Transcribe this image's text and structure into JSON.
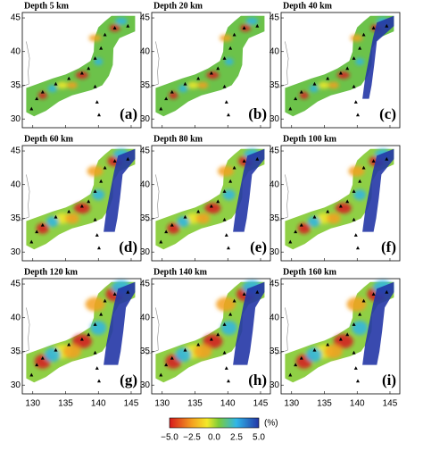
{
  "panels": [
    {
      "title": "Depth 5 km",
      "label": "(a)"
    },
    {
      "title": "Depth 20 km",
      "label": "(b)"
    },
    {
      "title": "Depth 40 km",
      "label": "(c)"
    },
    {
      "title": "Depth 60 km",
      "label": "(d)"
    },
    {
      "title": "Depth 80 km",
      "label": "(e)"
    },
    {
      "title": "Depth 100 km",
      "label": "(f)"
    },
    {
      "title": "Depth 120 km",
      "label": "(g)"
    },
    {
      "title": "Depth 140 km",
      "label": "(h)"
    },
    {
      "title": "Depth 160 km",
      "label": "(i)"
    }
  ],
  "x_ticks": [
    "130",
    "135",
    "140",
    "145"
  ],
  "y_ticks": [
    "30",
    "35",
    "40",
    "45"
  ],
  "colorbar": {
    "ticks": [
      "−5.0",
      "−2.5",
      "0.0",
      "2.5",
      "5.0"
    ],
    "unit": "(%)"
  }
}
